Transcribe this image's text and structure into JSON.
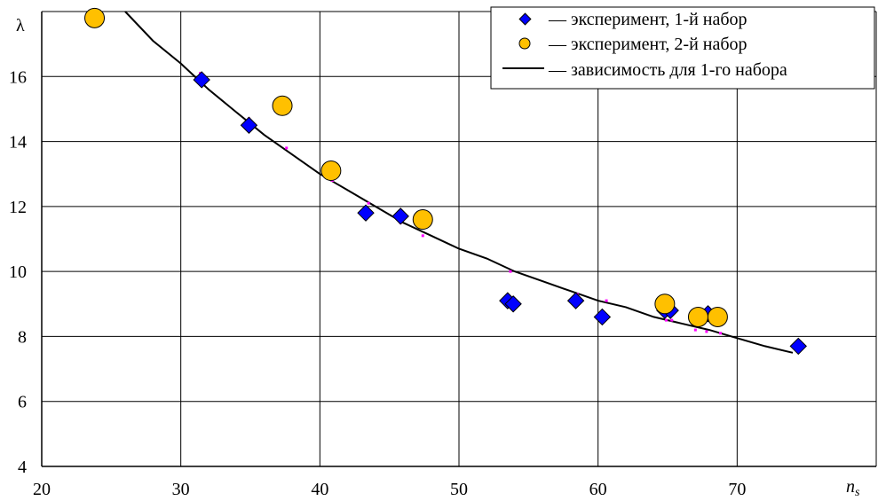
{
  "chart_data": {
    "type": "scatter",
    "ylabel": "λ",
    "xlabel": "n",
    "xlabel_sub": "s",
    "xlim": [
      20,
      80
    ],
    "ylim": [
      4,
      18
    ],
    "x_ticks": [
      "20",
      "30",
      "40",
      "50",
      "60",
      "70"
    ],
    "y_ticks": [
      "4",
      "6",
      "8",
      "10",
      "12",
      "14",
      "16"
    ],
    "grid": true,
    "legend_position": "top-right",
    "colors": {
      "set1": "#0000ff",
      "set2": "#ffc000",
      "fit": "#000000",
      "residual": "#ff00ff"
    },
    "series": [
      {
        "name": "— эксперимент, 1-й набор",
        "marker": "diamond",
        "points": [
          [
            31.5,
            15.9
          ],
          [
            34.9,
            14.5
          ],
          [
            43.3,
            11.8
          ],
          [
            45.8,
            11.7
          ],
          [
            53.5,
            9.1
          ],
          [
            53.9,
            9.0
          ],
          [
            58.4,
            9.1
          ],
          [
            60.3,
            8.6
          ],
          [
            64.8,
            8.8
          ],
          [
            65.2,
            8.8
          ],
          [
            67.9,
            8.7
          ],
          [
            74.4,
            7.7
          ]
        ]
      },
      {
        "name": "— эксперимент, 2-й набор",
        "marker": "circle",
        "points": [
          [
            23.8,
            17.8
          ],
          [
            37.3,
            15.1
          ],
          [
            40.8,
            13.1
          ],
          [
            47.4,
            11.6
          ],
          [
            64.8,
            9.0
          ],
          [
            67.2,
            8.6
          ],
          [
            68.6,
            8.6
          ]
        ]
      },
      {
        "name": "— зависимость для 1-го набора",
        "marker": "line",
        "points": [
          [
            26.0,
            18.0
          ],
          [
            28.0,
            17.1
          ],
          [
            30.0,
            16.4
          ],
          [
            32.0,
            15.6
          ],
          [
            34.0,
            14.9
          ],
          [
            36.0,
            14.2
          ],
          [
            38.0,
            13.6
          ],
          [
            40.0,
            13.0
          ],
          [
            42.0,
            12.5
          ],
          [
            44.0,
            12.0
          ],
          [
            46.0,
            11.5
          ],
          [
            48.0,
            11.1
          ],
          [
            50.0,
            10.7
          ],
          [
            52.0,
            10.4
          ],
          [
            54.0,
            10.0
          ],
          [
            56.0,
            9.7
          ],
          [
            58.0,
            9.4
          ],
          [
            60.0,
            9.1
          ],
          [
            62.0,
            8.9
          ],
          [
            64.0,
            8.6
          ],
          [
            66.0,
            8.4
          ],
          [
            68.0,
            8.2
          ],
          [
            70.0,
            7.95
          ],
          [
            72.0,
            7.7
          ],
          [
            74.0,
            7.5
          ]
        ]
      },
      {
        "name": "",
        "marker": "dot",
        "points": [
          [
            31.4,
            16.1
          ],
          [
            34.9,
            14.7
          ],
          [
            37.6,
            13.8
          ],
          [
            40.9,
            12.8
          ],
          [
            43.5,
            12.1
          ],
          [
            45.8,
            11.5
          ],
          [
            47.4,
            11.1
          ],
          [
            53.7,
            10.0
          ],
          [
            58.5,
            9.3
          ],
          [
            60.6,
            9.1
          ],
          [
            64.9,
            8.5
          ],
          [
            65.3,
            8.5
          ],
          [
            67.0,
            8.2
          ],
          [
            67.8,
            8.15
          ],
          [
            68.8,
            8.1
          ]
        ]
      }
    ]
  }
}
